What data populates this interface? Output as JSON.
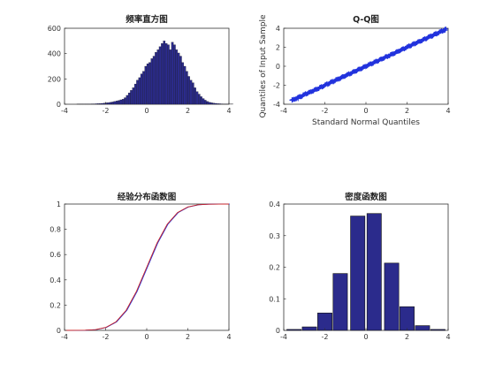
{
  "figure": {
    "background": "#ffffff",
    "bar_fill": "#2b2b8c",
    "line_color": "#cc2222",
    "marker_color": "#2233dd"
  },
  "chart_data": [
    {
      "id": "hist",
      "type": "bar",
      "title": "频率直方图",
      "xlabel": "",
      "ylabel": "",
      "xlim": [
        -4,
        4
      ],
      "ylim": [
        0,
        600
      ],
      "xticks": [
        -4,
        -2,
        0,
        2,
        4
      ],
      "yticks": [
        0,
        200,
        400,
        600
      ],
      "bin_start": -3.4,
      "bin_width": 0.1,
      "values": [
        1,
        1,
        1,
        1,
        2,
        2,
        2,
        3,
        3,
        4,
        5,
        6,
        7,
        9,
        11,
        13,
        15,
        18,
        22,
        26,
        30,
        35,
        40,
        52,
        70,
        90,
        110,
        130,
        160,
        190,
        210,
        240,
        260,
        300,
        320,
        330,
        360,
        380,
        410,
        430,
        455,
        480,
        500,
        480,
        470,
        430,
        490,
        470,
        430,
        405,
        380,
        330,
        300,
        260,
        220,
        190,
        170,
        130,
        100,
        80,
        60,
        45,
        32,
        22,
        16,
        12,
        9,
        7,
        5,
        4,
        3,
        2,
        2,
        1,
        1,
        1
      ]
    },
    {
      "id": "qq",
      "type": "scatter",
      "title": "Q-Q图",
      "xlabel": "Standard Normal Quantiles",
      "ylabel": "Quantiles of Input Sample",
      "xlim": [
        -4,
        4
      ],
      "ylim": [
        -4,
        4
      ],
      "xticks": [
        -4,
        -2,
        0,
        2,
        4
      ],
      "yticks": [
        -4,
        -2,
        0,
        2,
        4
      ],
      "x_range": [
        -3.6,
        3.9
      ],
      "outliers": [
        [
          -3.6,
          -3.55
        ],
        [
          3.85,
          3.8
        ],
        [
          3.4,
          3.45
        ],
        [
          -3.3,
          -3.4
        ]
      ]
    },
    {
      "id": "ecdf",
      "type": "line",
      "title": "经验分布函数图",
      "xlabel": "",
      "ylabel": "",
      "xlim": [
        -4,
        4
      ],
      "ylim": [
        0,
        1
      ],
      "xticks": [
        -4,
        -2,
        0,
        2,
        4
      ],
      "yticks": [
        0,
        0.2,
        0.4,
        0.6,
        0.8,
        1
      ],
      "x": [
        -4,
        -3.5,
        -3,
        -2.5,
        -2,
        -1.5,
        -1,
        -0.5,
        0,
        0.5,
        1,
        1.5,
        2,
        2.5,
        3,
        3.5,
        4
      ],
      "y": [
        0,
        0.0002,
        0.0013,
        0.006,
        0.023,
        0.067,
        0.159,
        0.309,
        0.5,
        0.691,
        0.841,
        0.933,
        0.977,
        0.994,
        0.9987,
        0.9998,
        1
      ]
    },
    {
      "id": "density",
      "type": "bar",
      "title": "密度函数图",
      "xlabel": "",
      "ylabel": "",
      "xlim": [
        -4,
        4
      ],
      "ylim": [
        0,
        0.4
      ],
      "xticks": [
        -4,
        -2,
        0,
        2,
        4
      ],
      "yticks": [
        0,
        0.1,
        0.2,
        0.3,
        0.4
      ],
      "categories": [
        -3.5,
        -2.75,
        -2,
        -1.25,
        -0.4,
        0.4,
        1.25,
        2,
        2.75,
        3.5
      ],
      "bar_width": 0.7,
      "values": [
        0.003,
        0.011,
        0.055,
        0.18,
        0.362,
        0.37,
        0.213,
        0.075,
        0.015,
        0.003
      ]
    }
  ]
}
